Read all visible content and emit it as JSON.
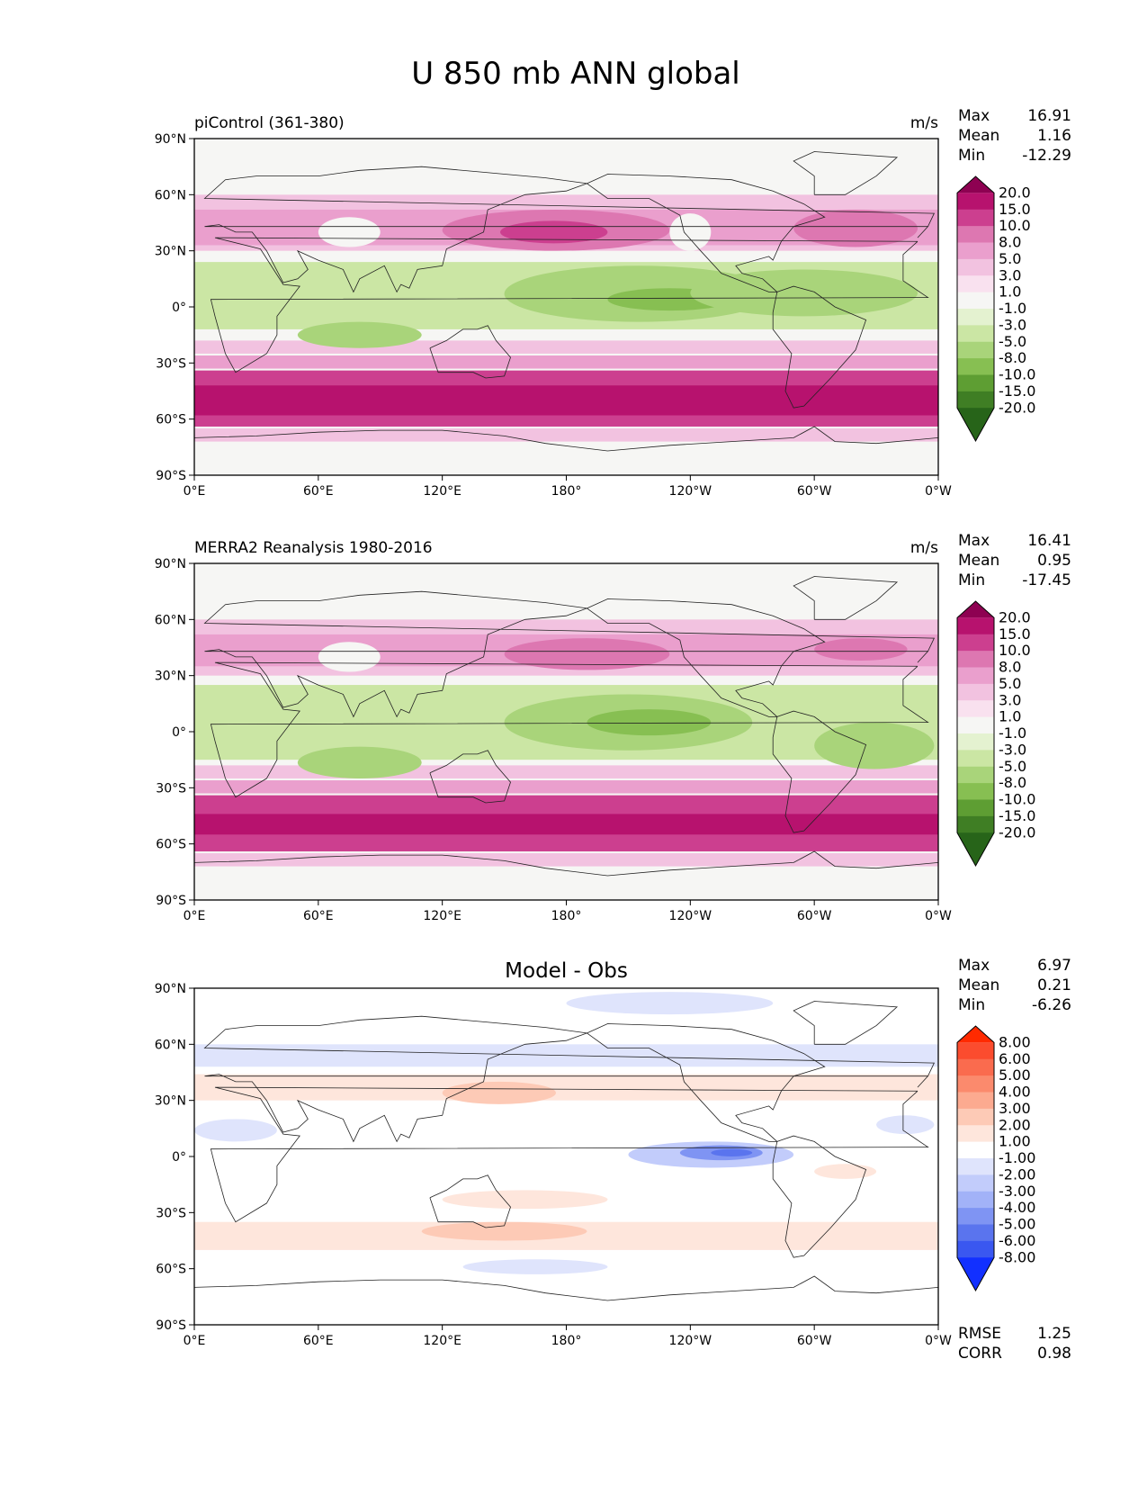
{
  "figure": {
    "title": "U 850 mb ANN global"
  },
  "lat_ticks": [
    "90°N",
    "60°N",
    "30°N",
    "0°",
    "30°S",
    "60°S",
    "90°S"
  ],
  "lon_ticks": [
    "0°E",
    "60°E",
    "120°E",
    "180°",
    "120°W",
    "60°W",
    "0°W"
  ],
  "panels": [
    {
      "id": "model",
      "label": "piControl (361-380)",
      "units": "m/s",
      "center_title": "",
      "stats": [
        {
          "label": "Max",
          "value": "16.91"
        },
        {
          "label": "Mean",
          "value": "1.16"
        },
        {
          "label": "Min",
          "value": "-12.29"
        }
      ],
      "colorbar": {
        "levels": [
          "20.0",
          "15.0",
          "10.0",
          "8.0",
          "5.0",
          "3.0",
          "1.0",
          "-1.0",
          "-3.0",
          "-5.0",
          "-8.0",
          "-10.0",
          "-15.0",
          "-20.0"
        ],
        "colors": [
          "#8e0152",
          "#b7126e",
          "#cc3f8f",
          "#dd77b1",
          "#ea9fcd",
          "#f2c2e0",
          "#f9e1ef",
          "#f6f6f4",
          "#e4f2d0",
          "#cbe6a4",
          "#a9d47a",
          "#87bf52",
          "#5e9e33",
          "#3f7e24",
          "#276419"
        ]
      },
      "extra_stats": []
    },
    {
      "id": "obs",
      "label": "MERRA2 Reanalysis 1980-2016",
      "units": "m/s",
      "center_title": "",
      "stats": [
        {
          "label": "Max",
          "value": "16.41"
        },
        {
          "label": "Mean",
          "value": "0.95"
        },
        {
          "label": "Min",
          "value": "-17.45"
        }
      ],
      "colorbar": {
        "levels": [
          "20.0",
          "15.0",
          "10.0",
          "8.0",
          "5.0",
          "3.0",
          "1.0",
          "-1.0",
          "-3.0",
          "-5.0",
          "-8.0",
          "-10.0",
          "-15.0",
          "-20.0"
        ],
        "colors": [
          "#8e0152",
          "#b7126e",
          "#cc3f8f",
          "#dd77b1",
          "#ea9fcd",
          "#f2c2e0",
          "#f9e1ef",
          "#f6f6f4",
          "#e4f2d0",
          "#cbe6a4",
          "#a9d47a",
          "#87bf52",
          "#5e9e33",
          "#3f7e24",
          "#276419"
        ]
      },
      "extra_stats": []
    },
    {
      "id": "diff",
      "label": "",
      "units": "",
      "center_title": "Model - Obs",
      "stats": [
        {
          "label": "Max",
          "value": "6.97"
        },
        {
          "label": "Mean",
          "value": "0.21"
        },
        {
          "label": "Min",
          "value": "-6.26"
        }
      ],
      "colorbar": {
        "levels": [
          "8.00",
          "6.00",
          "5.00",
          "4.00",
          "3.00",
          "2.00",
          "1.00",
          "-1.00",
          "-2.00",
          "-3.00",
          "-4.00",
          "-5.00",
          "-6.00",
          "-8.00"
        ],
        "colors": [
          "#ff2a00",
          "#fb4c2e",
          "#fa6b4e",
          "#fb8a6d",
          "#fcaa90",
          "#fdcab6",
          "#fee6dc",
          "#ffffff",
          "#dfe4fc",
          "#c2ccfb",
          "#a2b2f8",
          "#7f94f3",
          "#5a74ee",
          "#3a57f0",
          "#1230ff"
        ]
      },
      "extra_stats": [
        {
          "label": "RMSE",
          "value": "1.25"
        },
        {
          "label": "CORR",
          "value": "0.98"
        }
      ]
    }
  ],
  "map_fields": {
    "model": [
      {
        "type": "band",
        "lat": [
          -64,
          -34
        ],
        "color": "#cc3f8f"
      },
      {
        "type": "band",
        "lat": [
          -58,
          -42
        ],
        "color": "#b7126e"
      },
      {
        "type": "band",
        "lat": [
          -33,
          -26
        ],
        "color": "#ea9fcd"
      },
      {
        "type": "band",
        "lat": [
          -25,
          -18
        ],
        "color": "#f2c2e0"
      },
      {
        "type": "band",
        "lat": [
          -72,
          -65
        ],
        "color": "#f2c2e0"
      },
      {
        "type": "band",
        "lat": [
          -12,
          24
        ],
        "color": "#cbe6a4"
      },
      {
        "type": "band",
        "lat": [
          30,
          60
        ],
        "color": "#f2c2e0"
      },
      {
        "type": "band",
        "lat": [
          33,
          52
        ],
        "color": "#ea9fcd"
      },
      {
        "type": "blob",
        "lon": [
          120,
          230
        ],
        "lat": [
          30,
          52
        ],
        "color": "#dd77b1"
      },
      {
        "type": "blob",
        "lon": [
          148,
          200
        ],
        "lat": [
          34,
          46
        ],
        "color": "#cc3f8f"
      },
      {
        "type": "blob",
        "lon": [
          290,
          350
        ],
        "lat": [
          32,
          52
        ],
        "color": "#dd77b1"
      },
      {
        "type": "blob",
        "lon": [
          150,
          280
        ],
        "lat": [
          -8,
          22
        ],
        "color": "#a9d47a"
      },
      {
        "type": "blob",
        "lon": [
          200,
          260
        ],
        "lat": [
          -2,
          10
        ],
        "color": "#87bf52"
      },
      {
        "type": "blob",
        "lon": [
          50,
          110
        ],
        "lat": [
          -22,
          -8
        ],
        "color": "#a9d47a"
      },
      {
        "type": "blob",
        "lon": [
          240,
          350
        ],
        "lat": [
          -5,
          20
        ],
        "color": "#a9d47a"
      },
      {
        "type": "blob",
        "lon": [
          60,
          90
        ],
        "lat": [
          32,
          48
        ],
        "color": "#f6f6f4"
      },
      {
        "type": "blob",
        "lon": [
          230,
          250
        ],
        "lat": [
          30,
          50
        ],
        "color": "#f6f6f4"
      }
    ],
    "obs": [
      {
        "type": "band",
        "lat": [
          -64,
          -34
        ],
        "color": "#cc3f8f"
      },
      {
        "type": "band",
        "lat": [
          -55,
          -44
        ],
        "color": "#b7126e"
      },
      {
        "type": "band",
        "lat": [
          -33,
          -26
        ],
        "color": "#ea9fcd"
      },
      {
        "type": "band",
        "lat": [
          -25,
          -18
        ],
        "color": "#f2c2e0"
      },
      {
        "type": "band",
        "lat": [
          -72,
          -65
        ],
        "color": "#f2c2e0"
      },
      {
        "type": "band",
        "lat": [
          -15,
          25
        ],
        "color": "#cbe6a4"
      },
      {
        "type": "band",
        "lat": [
          30,
          60
        ],
        "color": "#f2c2e0"
      },
      {
        "type": "band",
        "lat": [
          35,
          52
        ],
        "color": "#ea9fcd"
      },
      {
        "type": "blob",
        "lon": [
          150,
          230
        ],
        "lat": [
          33,
          50
        ],
        "color": "#dd77b1"
      },
      {
        "type": "blob",
        "lon": [
          300,
          345
        ],
        "lat": [
          38,
          50
        ],
        "color": "#dd77b1"
      },
      {
        "type": "blob",
        "lon": [
          150,
          270
        ],
        "lat": [
          -10,
          20
        ],
        "color": "#a9d47a"
      },
      {
        "type": "blob",
        "lon": [
          190,
          250
        ],
        "lat": [
          -2,
          12
        ],
        "color": "#87bf52"
      },
      {
        "type": "blob",
        "lon": [
          50,
          110
        ],
        "lat": [
          -25,
          -8
        ],
        "color": "#a9d47a"
      },
      {
        "type": "blob",
        "lon": [
          300,
          358
        ],
        "lat": [
          -20,
          5
        ],
        "color": "#a9d47a"
      },
      {
        "type": "blob",
        "lon": [
          60,
          90
        ],
        "lat": [
          32,
          48
        ],
        "color": "#f6f6f4"
      }
    ],
    "diff": [
      {
        "type": "band",
        "lat": [
          -50,
          -35
        ],
        "color": "#fee6dc"
      },
      {
        "type": "blob",
        "lon": [
          110,
          190
        ],
        "lat": [
          -45,
          -35
        ],
        "color": "#fdcab6"
      },
      {
        "type": "band",
        "lat": [
          30,
          44
        ],
        "color": "#fee6dc"
      },
      {
        "type": "blob",
        "lon": [
          120,
          175
        ],
        "lat": [
          28,
          40
        ],
        "color": "#fdcab6"
      },
      {
        "type": "band",
        "lat": [
          48,
          60
        ],
        "color": "#dfe4fc"
      },
      {
        "type": "blob",
        "lon": [
          120,
          200
        ],
        "lat": [
          -28,
          -18
        ],
        "color": "#fee6dc"
      },
      {
        "type": "blob",
        "lon": [
          0,
          40
        ],
        "lat": [
          8,
          20
        ],
        "color": "#dfe4fc"
      },
      {
        "type": "blob",
        "lon": [
          210,
          290
        ],
        "lat": [
          -6,
          8
        ],
        "color": "#c2ccfb"
      },
      {
        "type": "blob",
        "lon": [
          235,
          275
        ],
        "lat": [
          -2,
          6
        ],
        "color": "#7f94f3"
      },
      {
        "type": "blob",
        "lon": [
          250,
          270
        ],
        "lat": [
          0,
          4
        ],
        "color": "#5a74ee"
      },
      {
        "type": "blob",
        "lon": [
          130,
          200
        ],
        "lat": [
          -63,
          -55
        ],
        "color": "#dfe4fc"
      },
      {
        "type": "blob",
        "lon": [
          180,
          280
        ],
        "lat": [
          76,
          88
        ],
        "color": "#dfe4fc"
      },
      {
        "type": "blob",
        "lon": [
          300,
          330
        ],
        "lat": [
          -12,
          -4
        ],
        "color": "#fee6dc"
      },
      {
        "type": "blob",
        "lon": [
          330,
          358
        ],
        "lat": [
          12,
          22
        ],
        "color": "#dfe4fc"
      }
    ]
  },
  "map_fields_note": ""
}
